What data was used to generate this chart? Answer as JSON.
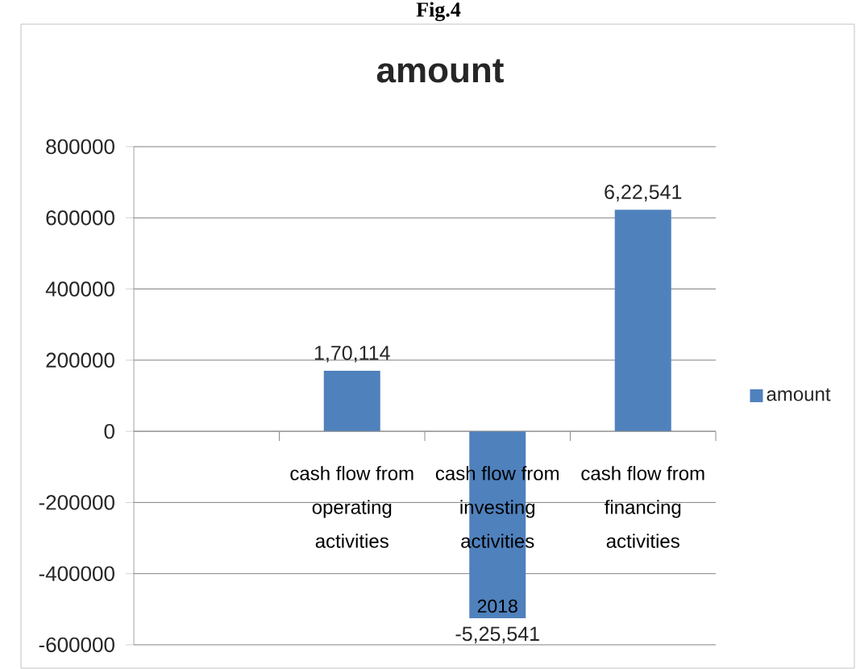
{
  "chart_data": {
    "type": "bar",
    "title": "amount",
    "xlabel": "2018",
    "annotations": [
      "Fig.4"
    ],
    "categories": [
      null,
      "cash flow from operating activities",
      "cash flow from investing activities",
      "cash flow from financing activities"
    ],
    "series": [
      {
        "name": "amount",
        "color": "#4f81bd",
        "values": [
          null,
          170114,
          -525541,
          622541
        ],
        "value_labels": [
          null,
          "1,70,114",
          "-5,25,541",
          "6,22,541"
        ]
      }
    ],
    "ylim": [
      -600000,
      800000
    ],
    "yticks": [
      -600000,
      -400000,
      -200000,
      0,
      200000,
      400000,
      600000,
      800000
    ],
    "grid": "y",
    "legend": "right"
  }
}
